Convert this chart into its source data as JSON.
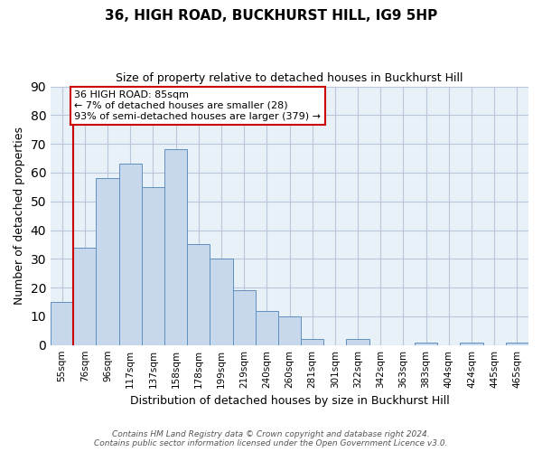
{
  "title": "36, HIGH ROAD, BUCKHURST HILL, IG9 5HP",
  "subtitle": "Size of property relative to detached houses in Buckhurst Hill",
  "xlabel": "Distribution of detached houses by size in Buckhurst Hill",
  "ylabel": "Number of detached properties",
  "bin_labels": [
    "55sqm",
    "76sqm",
    "96sqm",
    "117sqm",
    "137sqm",
    "158sqm",
    "178sqm",
    "199sqm",
    "219sqm",
    "240sqm",
    "260sqm",
    "281sqm",
    "301sqm",
    "322sqm",
    "342sqm",
    "363sqm",
    "383sqm",
    "404sqm",
    "424sqm",
    "445sqm",
    "465sqm"
  ],
  "bar_heights": [
    15,
    34,
    58,
    63,
    55,
    68,
    35,
    30,
    19,
    12,
    10,
    2,
    0,
    2,
    0,
    0,
    1,
    0,
    1,
    0,
    1
  ],
  "bar_color": "#c8d8ec",
  "bar_edge_color": "#6090c0",
  "vline_color": "#cc0000",
  "annotation_line1": "36 HIGH ROAD: 85sqm",
  "annotation_line2": "← 7% of detached houses are smaller (28)",
  "annotation_line3": "93% of semi-detached houses are larger (379) →",
  "ylim": [
    0,
    90
  ],
  "yticks": [
    0,
    10,
    20,
    30,
    40,
    50,
    60,
    70,
    80,
    90
  ],
  "footnote": "Contains HM Land Registry data © Crown copyright and database right 2024.\nContains public sector information licensed under the Open Government Licence v3.0.",
  "bg_color": "#ffffff",
  "plot_bg_color": "#e8f0f8",
  "grid_color": "#b8c8d8"
}
